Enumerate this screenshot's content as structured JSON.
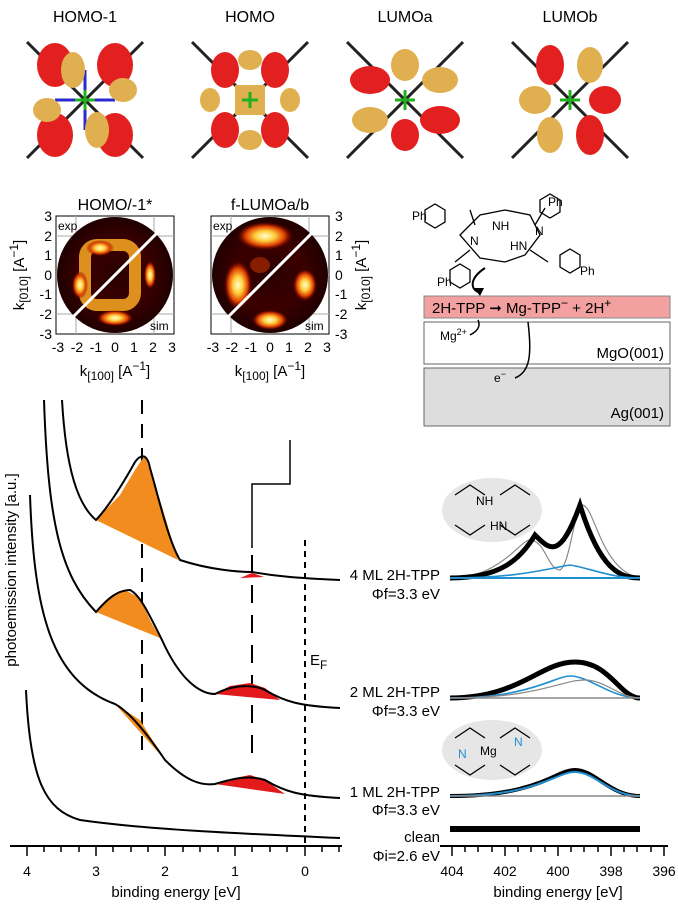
{
  "orbitals": [
    {
      "label": "HOMO-1"
    },
    {
      "label": "HOMO"
    },
    {
      "label": "LUMOa"
    },
    {
      "label": "LUMOb"
    }
  ],
  "momentum_maps": [
    {
      "title": "HOMO/-1*",
      "exp_label": "exp",
      "sim_label": "sim"
    },
    {
      "title": "f-LUMOa/b",
      "exp_label": "exp",
      "sim_label": "sim"
    }
  ],
  "map_axes": {
    "ylabel_main": "k",
    "ylabel_sub": "[010]",
    "ylabel_unit": "[A",
    "xlabel_main": "k",
    "xlabel_sub": "[100]",
    "xlabel_unit": "[A",
    "unit_sup": "−1",
    "unit_close": "]",
    "ticks": [
      "3",
      "2",
      "1",
      "0",
      "-1",
      "-2",
      "-3"
    ],
    "xticks": [
      "-3",
      "-2",
      "-1",
      "0",
      "1",
      "2",
      "3"
    ]
  },
  "schematic": {
    "ph1": "Ph",
    "ph2": "Ph",
    "ph3": "Ph",
    "ph4": "Ph",
    "nh": "NH",
    "hn": "HN",
    "n1": "N",
    "n2": "N",
    "reaction_a": "2H-TPP",
    "reaction_b": "Mg-TPP",
    "reaction_b_sup": "−",
    "reaction_c": " + 2H",
    "reaction_c_sup": "+",
    "mg_ion": "Mg",
    "mg_sup": "2+",
    "electron": "e",
    "electron_sup": "−",
    "layer_mgo": "MgO(001)",
    "layer_ag": "Ag(001)",
    "colors": {
      "reaction_fill": "#f2a0a0",
      "ag_fill": "#dddddd"
    }
  },
  "spectra_panel": {
    "ylabel": "photoemission intensity [a.u.]",
    "xlabel": "binding energy [eV]",
    "xticks": [
      "4",
      "3",
      "2",
      "1",
      "0"
    ],
    "fermi_label": "E",
    "fermi_sub": "F",
    "traces": [
      {
        "label": "4 ML 2H-TPP",
        "phi": "Φf=3.3 eV"
      },
      {
        "label": "2 ML 2H-TPP",
        "phi": "Φf=3.3 eV"
      },
      {
        "label": "1 ML 2H-TPP",
        "phi": "Φf=3.3 eV"
      },
      {
        "label": "clean",
        "phi": "Φi=2.6 eV"
      }
    ],
    "colors": {
      "homo_fill": "#f28c1e",
      "lumo_fill": "#e31a1c"
    }
  },
  "xps_panel": {
    "xlabel": "binding energy [eV]",
    "xticks": [
      "404",
      "402",
      "400",
      "398",
      "396"
    ],
    "inset_top": {
      "nh": "NH",
      "hn": "HN"
    },
    "inset_bottom": {
      "mg": "Mg",
      "n": "N"
    },
    "colors": {
      "fit": "#1f8fd1",
      "data": "#888888"
    }
  }
}
